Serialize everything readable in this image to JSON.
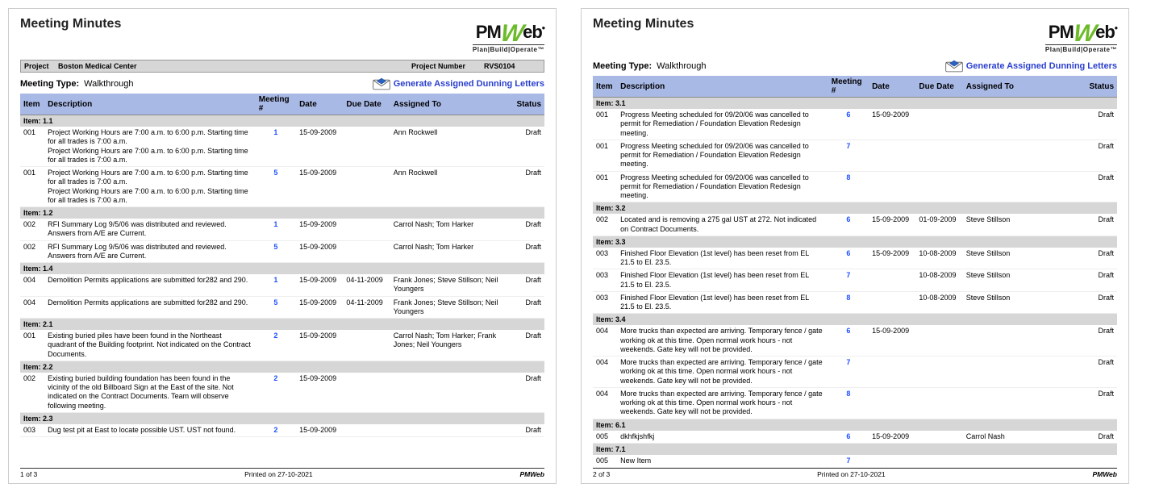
{
  "report_title": "Meeting Minutes",
  "logo": {
    "text_left": "PM",
    "text_w": "W",
    "text_right": "eb",
    "dot": "•",
    "tagline": "Plan|Build|Operate™"
  },
  "project_bar": {
    "project_label": "Project",
    "project_name": "Boston Medical Center",
    "project_number_label": "Project Number",
    "project_number": "RVS0104"
  },
  "meeting_type_label": "Meeting Type:",
  "meeting_type_value": "Walkthrough",
  "generate_link": "Generate Assigned Dunning Letters",
  "columns": {
    "item": "Item",
    "description": "Description",
    "meeting_no": "Meeting #",
    "date": "Date",
    "due_date": "Due Date",
    "assigned_to": "Assigned To",
    "status": "Status"
  },
  "footer": {
    "printed_label": "Printed on",
    "printed_date": "27-10-2021",
    "brand": "PMWeb"
  },
  "pages": [
    {
      "page_label": "1 of 3",
      "show_project_bar": true,
      "groups": [
        {
          "label": "Item: 1.1",
          "rows": [
            {
              "item": "001",
              "desc": "Project Working Hours are 7:00 a.m. to 6:00 p.m. Starting time for all trades is 7:00 a.m.\nProject Working Hours are 7:00 a.m. to 6:00 p.m. Starting time for all trades is 7:00 a.m.",
              "meet": "1",
              "date": "15-09-2009",
              "due": "",
              "assn": "Ann Rockwell",
              "status": "Draft"
            },
            {
              "item": "001",
              "desc": "Project Working Hours are 7:00 a.m. to 6:00 p.m. Starting time for all trades is 7:00 a.m.\nProject Working Hours are 7:00 a.m. to 6:00 p.m. Starting time for all trades is 7:00 a.m.",
              "meet": "5",
              "date": "15-09-2009",
              "due": "",
              "assn": "Ann Rockwell",
              "status": "Draft"
            }
          ]
        },
        {
          "label": "Item: 1.2",
          "rows": [
            {
              "item": "002",
              "desc": "RFI Summary Log 9/5/06 was distributed and reviewed. Answers from A/E are Current.",
              "meet": "1",
              "date": "15-09-2009",
              "due": "",
              "assn": "Carrol Nash; Tom Harker",
              "status": "Draft"
            },
            {
              "item": "002",
              "desc": "RFI Summary Log 9/5/06 was distributed and reviewed. Answers from A/E are Current.",
              "meet": "5",
              "date": "15-09-2009",
              "due": "",
              "assn": "Carrol Nash; Tom Harker",
              "status": "Draft"
            }
          ]
        },
        {
          "label": "Item: 1.4",
          "rows": [
            {
              "item": "004",
              "desc": "Demolition Permits applications are submitted for282 and 290.",
              "meet": "1",
              "date": "15-09-2009",
              "due": "04-11-2009",
              "assn": "Frank Jones; Steve Stillson; Neil Youngers",
              "status": "Draft"
            },
            {
              "item": "004",
              "desc": "Demolition Permits applications are submitted for282 and 290.",
              "meet": "5",
              "date": "15-09-2009",
              "due": "04-11-2009",
              "assn": "Frank Jones; Steve Stillson; Neil Youngers",
              "status": "Draft"
            }
          ]
        },
        {
          "label": "Item: 2.1",
          "rows": [
            {
              "item": "001",
              "desc": "Existing buried piles have been found in the Northeast quadrant of the Building footprint. Not indicated on the Contract Documents.",
              "meet": "2",
              "date": "15-09-2009",
              "due": "",
              "assn": "Carrol Nash; Tom Harker; Frank Jones; Neil Youngers",
              "status": "Draft"
            }
          ]
        },
        {
          "label": "Item: 2.2",
          "rows": [
            {
              "item": "002",
              "desc": "Existing buried building foundation has been found in the vicinity of the old Billboard Sign at the East of the site. Not indicated on the Contract Documents. Team will observe following meeting.",
              "meet": "2",
              "date": "15-09-2009",
              "due": "",
              "assn": "",
              "status": "Draft"
            }
          ]
        },
        {
          "label": "Item: 2.3",
          "rows": [
            {
              "item": "003",
              "desc": "Dug test pit at East to locate possible UST. UST not found.",
              "meet": "2",
              "date": "15-09-2009",
              "due": "",
              "assn": "",
              "status": "Draft"
            }
          ]
        }
      ]
    },
    {
      "page_label": "2 of 3",
      "show_project_bar": false,
      "groups": [
        {
          "label": "Item: 3.1",
          "rows": [
            {
              "item": "001",
              "desc": "Progress Meeting scheduled for 09/20/06 was cancelled to permit for Remediation / Foundation Elevation Redesign meeting.",
              "meet": "6",
              "date": "15-09-2009",
              "due": "",
              "assn": "",
              "status": "Draft"
            },
            {
              "item": "001",
              "desc": "Progress Meeting scheduled for 09/20/06 was cancelled to permit for Remediation / Foundation Elevation Redesign meeting.",
              "meet": "7",
              "date": "",
              "due": "",
              "assn": "",
              "status": "Draft"
            },
            {
              "item": "001",
              "desc": "Progress Meeting scheduled for 09/20/06 was cancelled to permit for Remediation / Foundation Elevation Redesign meeting.",
              "meet": "8",
              "date": "",
              "due": "",
              "assn": "",
              "status": "Draft"
            }
          ]
        },
        {
          "label": "Item: 3.2",
          "rows": [
            {
              "item": "002",
              "desc": "Located and is removing a 275 gal UST at 272. Not indicated on Contract Documents.",
              "meet": "6",
              "date": "15-09-2009",
              "due": "01-09-2009",
              "assn": "Steve Stillson",
              "status": "Draft"
            }
          ]
        },
        {
          "label": "Item: 3.3",
          "rows": [
            {
              "item": "003",
              "desc": "Finished Floor Elevation (1st level) has been reset from EL 21.5 to El. 23.5.",
              "meet": "6",
              "date": "15-09-2009",
              "due": "10-08-2009",
              "assn": "Steve Stillson",
              "status": "Draft"
            },
            {
              "item": "003",
              "desc": "Finished Floor Elevation (1st level) has been reset from EL 21.5 to El. 23.5.",
              "meet": "7",
              "date": "",
              "due": "10-08-2009",
              "assn": "Steve Stillson",
              "status": "Draft"
            },
            {
              "item": "003",
              "desc": "Finished Floor Elevation (1st level) has been reset from EL 21.5 to El. 23.5.",
              "meet": "8",
              "date": "",
              "due": "10-08-2009",
              "assn": "Steve Stillson",
              "status": "Draft"
            }
          ]
        },
        {
          "label": "Item: 3.4",
          "rows": [
            {
              "item": "004",
              "desc": "More trucks than  expected are arriving. Temporary fence / gate working ok at this time.  Open normal work hours - not weekends. Gate key will not be provided.",
              "meet": "6",
              "date": "15-09-2009",
              "due": "",
              "assn": "",
              "status": "Draft"
            },
            {
              "item": "004",
              "desc": "More trucks than  expected are arriving. Temporary fence / gate working ok at this time.  Open normal work hours - not weekends. Gate key will not be provided.",
              "meet": "7",
              "date": "",
              "due": "",
              "assn": "",
              "status": "Draft"
            },
            {
              "item": "004",
              "desc": "More trucks than  expected are arriving. Temporary fence / gate working ok at this time.  Open normal work hours - not weekends. Gate key will not be provided.",
              "meet": "8",
              "date": "",
              "due": "",
              "assn": "",
              "status": "Draft"
            }
          ]
        },
        {
          "label": "Item: 6.1",
          "rows": [
            {
              "item": "005",
              "desc": "dkhfkjshfkj",
              "meet": "6",
              "date": "15-09-2009",
              "due": "",
              "assn": "Carrol Nash",
              "status": "Draft"
            }
          ]
        },
        {
          "label": "Item: 7.1",
          "rows": [
            {
              "item": "005",
              "desc": "New Item",
              "meet": "7",
              "date": "",
              "due": "",
              "assn": "",
              "status": ""
            }
          ]
        }
      ]
    }
  ]
}
